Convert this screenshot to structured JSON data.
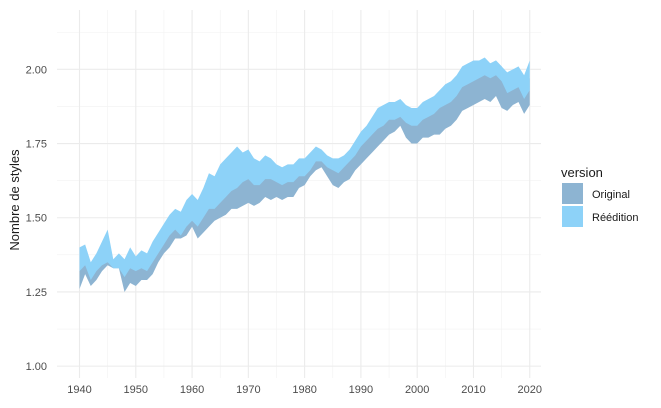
{
  "chart_data": {
    "type": "area",
    "xlabel": "",
    "ylabel": "Nombre de styles",
    "xlim": [
      1936,
      2022
    ],
    "ylim": [
      0.96,
      2.2
    ],
    "x_ticks": [
      1940,
      1950,
      1960,
      1970,
      1980,
      1990,
      2000,
      2010,
      2020
    ],
    "x_tick_labels": [
      "1940",
      "1950",
      "1960",
      "1970",
      "1980",
      "1990",
      "2000",
      "2010",
      "2020"
    ],
    "y_ticks": [
      1.0,
      1.25,
      1.5,
      1.75,
      2.0
    ],
    "y_tick_labels": [
      "1.00",
      "1.25",
      "1.50",
      "1.75",
      "2.00"
    ],
    "grid": true,
    "legend": {
      "title": "version",
      "position": "right"
    },
    "series": [
      {
        "name": "Original",
        "color": "#8db4d2",
        "x": [
          1940,
          1941,
          1942,
          1943,
          1944,
          1945,
          1946,
          1947,
          1948,
          1949,
          1950,
          1951,
          1952,
          1953,
          1954,
          1955,
          1956,
          1957,
          1958,
          1959,
          1960,
          1961,
          1962,
          1963,
          1964,
          1965,
          1966,
          1967,
          1968,
          1969,
          1970,
          1971,
          1972,
          1973,
          1974,
          1975,
          1976,
          1977,
          1978,
          1979,
          1980,
          1981,
          1982,
          1983,
          1984,
          1985,
          1986,
          1987,
          1988,
          1989,
          1990,
          1991,
          1992,
          1993,
          1994,
          1995,
          1996,
          1997,
          1998,
          1999,
          2000,
          2001,
          2002,
          2003,
          2004,
          2005,
          2006,
          2007,
          2008,
          2009,
          2010,
          2011,
          2012,
          2013,
          2014,
          2015,
          2016,
          2017,
          2018,
          2019,
          2020
        ],
        "lower": [
          1.26,
          1.31,
          1.27,
          1.29,
          1.32,
          1.34,
          1.33,
          1.33,
          1.25,
          1.28,
          1.27,
          1.29,
          1.29,
          1.31,
          1.35,
          1.38,
          1.4,
          1.43,
          1.43,
          1.44,
          1.47,
          1.43,
          1.45,
          1.47,
          1.49,
          1.5,
          1.51,
          1.53,
          1.53,
          1.54,
          1.55,
          1.54,
          1.55,
          1.57,
          1.56,
          1.57,
          1.56,
          1.57,
          1.57,
          1.6,
          1.61,
          1.64,
          1.66,
          1.67,
          1.64,
          1.61,
          1.6,
          1.62,
          1.63,
          1.66,
          1.68,
          1.7,
          1.72,
          1.74,
          1.76,
          1.78,
          1.79,
          1.81,
          1.77,
          1.75,
          1.75,
          1.77,
          1.77,
          1.78,
          1.78,
          1.8,
          1.81,
          1.83,
          1.86,
          1.87,
          1.88,
          1.89,
          1.9,
          1.89,
          1.91,
          1.87,
          1.86,
          1.88,
          1.89,
          1.85,
          1.88
        ],
        "upper": [
          1.33,
          1.35,
          1.3,
          1.33,
          1.36,
          1.38,
          1.35,
          1.36,
          1.33,
          1.36,
          1.34,
          1.36,
          1.35,
          1.38,
          1.42,
          1.45,
          1.48,
          1.49,
          1.47,
          1.51,
          1.52,
          1.5,
          1.53,
          1.57,
          1.56,
          1.58,
          1.6,
          1.63,
          1.64,
          1.66,
          1.67,
          1.64,
          1.63,
          1.66,
          1.66,
          1.64,
          1.63,
          1.64,
          1.64,
          1.66,
          1.66,
          1.68,
          1.71,
          1.71,
          1.69,
          1.68,
          1.67,
          1.68,
          1.7,
          1.72,
          1.75,
          1.77,
          1.8,
          1.83,
          1.84,
          1.86,
          1.86,
          1.87,
          1.84,
          1.83,
          1.83,
          1.85,
          1.86,
          1.87,
          1.89,
          1.9,
          1.91,
          1.93,
          1.96,
          1.97,
          1.99,
          2.0,
          2.02,
          2.02,
          2.03,
          2.01,
          1.97,
          1.98,
          1.99,
          1.94,
          1.97
        ]
      },
      {
        "name": "Réédition",
        "color": "#8dd2f8",
        "x": [
          1940,
          1941,
          1942,
          1943,
          1944,
          1945,
          1946,
          1947,
          1948,
          1949,
          1950,
          1951,
          1952,
          1953,
          1954,
          1955,
          1956,
          1957,
          1958,
          1959,
          1960,
          1961,
          1962,
          1963,
          1964,
          1965,
          1966,
          1967,
          1968,
          1969,
          1970,
          1971,
          1972,
          1973,
          1974,
          1975,
          1976,
          1977,
          1978,
          1979,
          1980,
          1981,
          1982,
          1983,
          1984,
          1985,
          1986,
          1987,
          1988,
          1989,
          1990,
          1991,
          1992,
          1993,
          1994,
          1995,
          1996,
          1997,
          1998,
          1999,
          2000,
          2001,
          2002,
          2003,
          2004,
          2005,
          2006,
          2007,
          2008,
          2009,
          2010,
          2011,
          2012,
          2013,
          2014,
          2015,
          2016,
          2017,
          2018,
          2019,
          2020
        ],
        "lower": [
          1.32,
          1.34,
          1.29,
          1.32,
          1.34,
          1.35,
          1.33,
          1.33,
          1.3,
          1.33,
          1.32,
          1.33,
          1.32,
          1.35,
          1.38,
          1.41,
          1.44,
          1.46,
          1.44,
          1.47,
          1.49,
          1.47,
          1.5,
          1.53,
          1.53,
          1.55,
          1.57,
          1.59,
          1.6,
          1.62,
          1.63,
          1.61,
          1.61,
          1.63,
          1.63,
          1.62,
          1.61,
          1.62,
          1.62,
          1.64,
          1.64,
          1.66,
          1.69,
          1.69,
          1.67,
          1.66,
          1.65,
          1.67,
          1.69,
          1.71,
          1.74,
          1.76,
          1.78,
          1.8,
          1.81,
          1.83,
          1.83,
          1.84,
          1.82,
          1.81,
          1.81,
          1.83,
          1.84,
          1.85,
          1.87,
          1.88,
          1.89,
          1.91,
          1.94,
          1.95,
          1.96,
          1.97,
          1.98,
          1.97,
          1.98,
          1.96,
          1.92,
          1.93,
          1.94,
          1.9,
          1.93
        ],
        "upper": [
          1.4,
          1.41,
          1.35,
          1.38,
          1.42,
          1.46,
          1.36,
          1.38,
          1.36,
          1.4,
          1.37,
          1.39,
          1.38,
          1.42,
          1.45,
          1.48,
          1.51,
          1.53,
          1.52,
          1.56,
          1.58,
          1.56,
          1.6,
          1.65,
          1.64,
          1.68,
          1.7,
          1.72,
          1.74,
          1.72,
          1.73,
          1.7,
          1.69,
          1.71,
          1.7,
          1.68,
          1.67,
          1.68,
          1.68,
          1.7,
          1.7,
          1.72,
          1.74,
          1.73,
          1.71,
          1.7,
          1.7,
          1.71,
          1.73,
          1.76,
          1.79,
          1.81,
          1.84,
          1.87,
          1.88,
          1.89,
          1.89,
          1.9,
          1.88,
          1.87,
          1.87,
          1.89,
          1.9,
          1.91,
          1.93,
          1.95,
          1.96,
          1.98,
          2.01,
          2.02,
          2.03,
          2.03,
          2.04,
          2.02,
          2.03,
          2.01,
          1.99,
          2.0,
          2.01,
          1.98,
          2.03
        ]
      }
    ]
  }
}
